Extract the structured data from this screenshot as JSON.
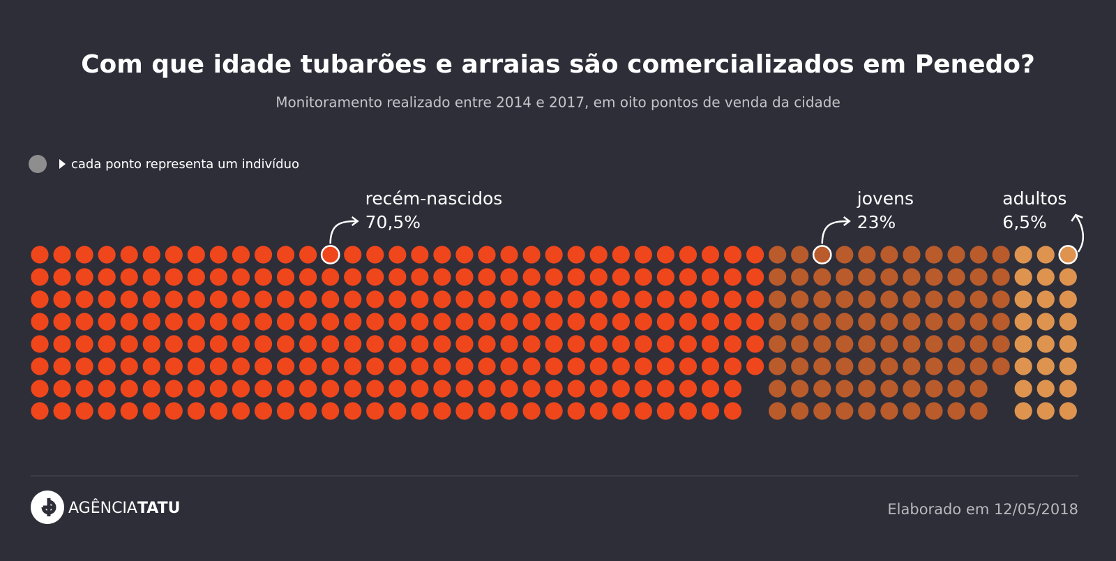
{
  "chart_data": {
    "type": "waffle",
    "title": "Com que idade tubarões e arraias são comercializados em Penedo?",
    "subtitle": "Monitoramento realizado entre 2014 e 2017, em oito pontos de venda da cidade",
    "legend_note": "cada ponto representa um indivíduo",
    "categories": [
      "recém-nascidos",
      "jovens",
      "adultos"
    ],
    "values": [
      70.5,
      23,
      6.5
    ],
    "value_labels": [
      "70,5%",
      "23%",
      "6,5%"
    ],
    "counts": [
      262,
      86,
      24
    ],
    "colors": [
      "#f0461b",
      "#b95b2b",
      "#de944f"
    ]
  },
  "footer": {
    "brand": [
      "AGÊNCIA",
      "TATU"
    ],
    "credit": "Elaborado em 12/05/2018"
  }
}
